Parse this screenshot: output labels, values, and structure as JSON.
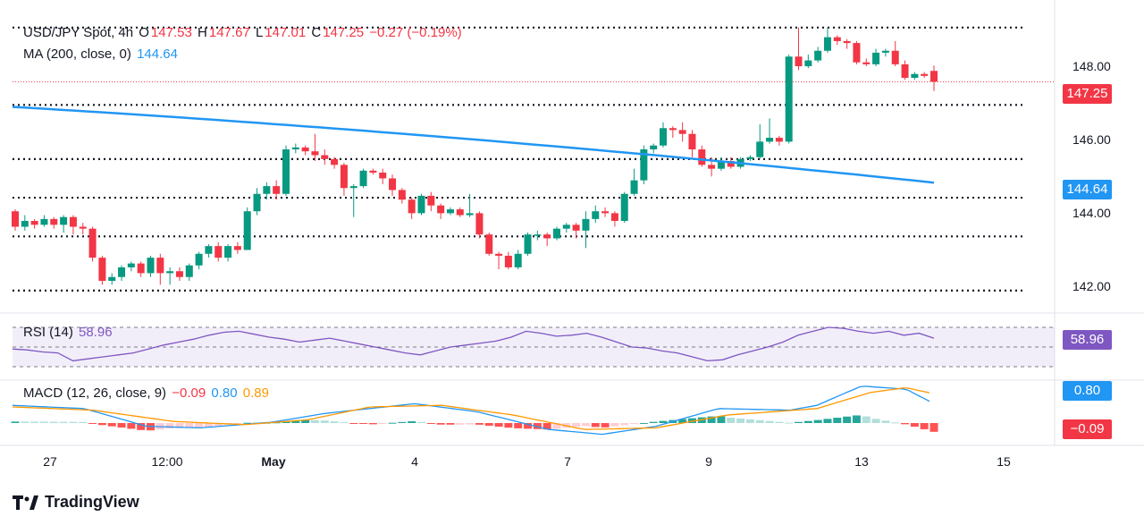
{
  "legend": {
    "symbol": "USD/JPY Spot, 4h",
    "o_label": "O",
    "o": "147.53",
    "h_label": "H",
    "h": "147.67",
    "l_label": "L",
    "l": "147.01",
    "c_label": "C",
    "c": "147.25",
    "change": "−0.27 (−0.19%)",
    "ma_label": "MA (200, close, 0)",
    "ma_value": "144.64",
    "rsi_label": "RSI (14)",
    "rsi_value": "58.96",
    "macd_label": "MACD (12, 26, close, 9)",
    "macd_hist": "−0.09",
    "macd_line": "0.80",
    "macd_signal": "0.89"
  },
  "badges": {
    "price": "147.25",
    "ma": "144.64",
    "rsi": "58.96",
    "macd_line": "0.80",
    "macd_hist": "−0.09"
  },
  "y_ticks": [
    "148.00",
    "146.00",
    "144.00",
    "142.00"
  ],
  "x_ticks": [
    "27",
    "12:00",
    "May",
    "4",
    "7",
    "9",
    "13",
    "15"
  ],
  "brand": "TradingView",
  "colors": {
    "up": "#089981",
    "down": "#f23645",
    "ma": "#2196f3",
    "rsi": "#7e57c2",
    "macd": "#2196f3",
    "signal": "#ff9800"
  },
  "chart_data": {
    "type": "candlestick",
    "title": "USD/JPY Spot, 4h",
    "ylim": [
      141.5,
      148.9
    ],
    "y_ticks": [
      142,
      144,
      146,
      148
    ],
    "x_ticks": [
      "27",
      "12:00",
      "May",
      "4",
      "7",
      "9",
      "13",
      "15"
    ],
    "support_resistance_levels": [
      148.65,
      146.65,
      145.25,
      144.25,
      143.25,
      141.85
    ],
    "last_price": 147.25,
    "candles": [
      [
        143.9,
        143.5,
        143.95,
        143.4
      ],
      [
        143.5,
        143.65,
        143.8,
        143.4
      ],
      [
        143.65,
        143.55,
        143.7,
        143.45
      ],
      [
        143.55,
        143.7,
        143.8,
        143.5
      ],
      [
        143.7,
        143.55,
        143.75,
        143.45
      ],
      [
        143.55,
        143.75,
        143.8,
        143.35
      ],
      [
        143.75,
        143.5,
        143.8,
        143.3
      ],
      [
        143.5,
        143.45,
        143.6,
        143.3
      ],
      [
        143.45,
        142.7,
        143.5,
        142.6
      ],
      [
        142.7,
        142.1,
        142.75,
        142.0
      ],
      [
        142.1,
        142.2,
        142.3,
        142.0
      ],
      [
        142.2,
        142.45,
        142.5,
        142.1
      ],
      [
        142.45,
        142.55,
        142.6,
        142.35
      ],
      [
        142.55,
        142.3,
        142.6,
        142.2
      ],
      [
        142.3,
        142.7,
        142.75,
        142.2
      ],
      [
        142.7,
        142.3,
        142.8,
        142.0
      ],
      [
        142.3,
        142.35,
        142.45,
        142.0
      ],
      [
        142.35,
        142.2,
        142.45,
        142.1
      ],
      [
        142.2,
        142.5,
        142.55,
        142.1
      ],
      [
        142.5,
        142.8,
        142.85,
        142.4
      ],
      [
        142.8,
        143.0,
        143.05,
        142.7
      ],
      [
        143.0,
        142.7,
        143.1,
        142.6
      ],
      [
        142.7,
        143.0,
        143.05,
        142.6
      ],
      [
        143.0,
        142.9,
        143.1,
        142.8
      ],
      [
        142.9,
        143.9,
        144.0,
        142.9
      ],
      [
        143.9,
        144.35,
        144.5,
        143.8
      ],
      [
        144.35,
        144.55,
        144.65,
        144.2
      ],
      [
        144.55,
        144.35,
        144.7,
        144.2
      ],
      [
        144.35,
        145.5,
        145.6,
        144.3
      ],
      [
        145.5,
        145.55,
        145.65,
        145.4
      ],
      [
        145.55,
        145.45,
        145.6,
        145.35
      ],
      [
        145.45,
        145.35,
        145.9,
        145.2
      ],
      [
        145.35,
        145.25,
        145.5,
        145.1
      ],
      [
        145.25,
        145.1,
        145.3,
        145.0
      ],
      [
        145.1,
        144.5,
        145.15,
        144.3
      ],
      [
        144.5,
        144.55,
        144.6,
        143.75
      ],
      [
        144.55,
        144.95,
        145.0,
        144.5
      ],
      [
        144.95,
        144.9,
        145.0,
        144.85
      ],
      [
        144.9,
        144.75,
        145.0,
        144.6
      ],
      [
        144.75,
        144.45,
        144.85,
        144.3
      ],
      [
        144.45,
        144.2,
        144.5,
        144.1
      ],
      [
        144.2,
        143.85,
        144.25,
        143.7
      ],
      [
        143.85,
        144.3,
        144.35,
        143.8
      ],
      [
        144.3,
        144.05,
        144.4,
        143.9
      ],
      [
        144.05,
        143.85,
        144.1,
        143.7
      ],
      [
        143.85,
        143.95,
        144.0,
        143.8
      ],
      [
        143.95,
        143.8,
        144.0,
        143.75
      ],
      [
        143.8,
        143.85,
        144.35,
        143.75
      ],
      [
        143.85,
        143.3,
        143.9,
        143.2
      ],
      [
        143.3,
        142.8,
        143.35,
        142.75
      ],
      [
        142.8,
        142.75,
        142.85,
        142.4
      ],
      [
        142.75,
        142.45,
        142.85,
        142.4
      ],
      [
        142.45,
        142.8,
        142.9,
        142.4
      ],
      [
        142.8,
        143.3,
        143.35,
        142.75
      ],
      [
        143.3,
        143.3,
        143.4,
        143.15
      ],
      [
        143.3,
        143.2,
        143.35,
        143.0
      ],
      [
        143.2,
        143.45,
        143.5,
        143.15
      ],
      [
        143.45,
        143.55,
        143.6,
        143.35
      ],
      [
        143.55,
        143.4,
        143.6,
        143.2
      ],
      [
        143.4,
        143.7,
        143.9,
        142.95
      ],
      [
        143.7,
        143.9,
        144.05,
        143.6
      ],
      [
        143.9,
        143.85,
        144.0,
        143.75
      ],
      [
        143.85,
        143.65,
        143.9,
        143.5
      ],
      [
        143.65,
        144.35,
        144.4,
        143.6
      ],
      [
        144.35,
        144.7,
        145.0,
        144.3
      ],
      [
        144.7,
        145.5,
        145.6,
        144.6
      ],
      [
        145.5,
        145.6,
        145.65,
        145.4
      ],
      [
        145.6,
        146.05,
        146.2,
        145.55
      ],
      [
        146.05,
        146.0,
        146.1,
        145.8
      ],
      [
        146.0,
        145.9,
        146.2,
        145.7
      ],
      [
        145.9,
        145.5,
        146.0,
        145.3
      ],
      [
        145.5,
        145.1,
        145.6,
        145.05
      ],
      [
        145.1,
        145.0,
        145.3,
        144.8
      ],
      [
        145.0,
        145.2,
        145.3,
        144.95
      ],
      [
        145.2,
        145.05,
        145.3,
        145.0
      ],
      [
        145.05,
        145.25,
        145.3,
        145.0
      ],
      [
        145.25,
        145.3,
        145.35,
        145.2
      ],
      [
        145.3,
        145.7,
        146.15,
        145.25
      ],
      [
        145.7,
        145.8,
        146.3,
        145.65
      ],
      [
        145.8,
        145.7,
        145.85,
        145.6
      ],
      [
        145.7,
        147.9,
        147.95,
        145.65
      ],
      [
        147.9,
        147.65,
        148.65,
        147.55
      ],
      [
        147.65,
        147.8,
        147.95,
        147.6
      ],
      [
        147.8,
        148.05,
        148.15,
        147.75
      ],
      [
        148.05,
        148.4,
        148.65,
        148.0
      ],
      [
        148.4,
        148.3,
        148.45,
        148.2
      ],
      [
        148.3,
        148.25,
        148.35,
        148.1
      ],
      [
        148.25,
        147.75,
        148.3,
        147.7
      ],
      [
        147.75,
        147.7,
        147.85,
        147.65
      ],
      [
        147.7,
        148.0,
        148.1,
        147.65
      ],
      [
        148.0,
        148.05,
        148.1,
        147.9
      ],
      [
        148.05,
        147.7,
        148.3,
        147.65
      ],
      [
        147.7,
        147.35,
        147.8,
        147.3
      ],
      [
        147.35,
        147.45,
        147.5,
        147.3
      ],
      [
        147.45,
        147.4,
        147.5,
        147.35
      ],
      [
        147.53,
        147.25,
        147.67,
        147.01
      ]
    ],
    "ma200": {
      "name": "MA (200, close, 0)",
      "start": 146.6,
      "end": 144.64
    },
    "rsi": {
      "name": "RSI (14)",
      "last": 58.96,
      "values": [
        48,
        47,
        45,
        44,
        36,
        38,
        40,
        42,
        44,
        48,
        52,
        55,
        58,
        62,
        65,
        66,
        63,
        60,
        58,
        55,
        57,
        59,
        56,
        53,
        50,
        47,
        44,
        42,
        46,
        50,
        52,
        54,
        56,
        60,
        66,
        64,
        61,
        62,
        64,
        60,
        55,
        50,
        49,
        46,
        44,
        40,
        36,
        37,
        42,
        46,
        50,
        55,
        62,
        66,
        70,
        69,
        66,
        64,
        66,
        62,
        64,
        58.96
      ]
    },
    "macd": {
      "name": "MACD (12, 26, close, 9)",
      "macd_last": 0.8,
      "signal_last": 0.89,
      "hist_last": -0.09
    }
  }
}
